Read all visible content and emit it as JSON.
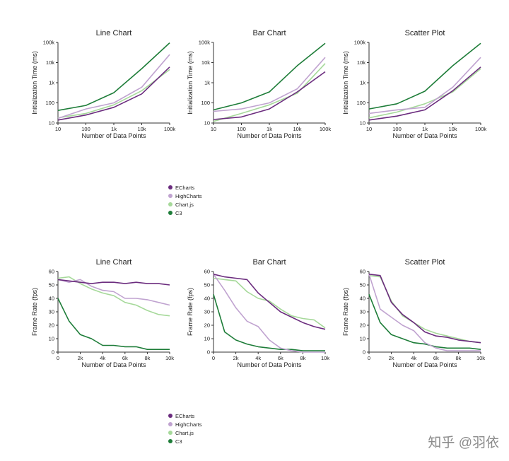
{
  "legend": [
    {
      "name": "ECharts",
      "color": "#6b2c7e"
    },
    {
      "name": "HighCharts",
      "color": "#c0a3d0"
    },
    {
      "name": "Chart.js",
      "color": "#a6d99a"
    },
    {
      "name": "C3",
      "color": "#1e7d39"
    }
  ],
  "watermark": "知乎 @羽依",
  "chart_data": [
    {
      "type": "line",
      "title": "Line Chart",
      "xlabel": "Number of Data Points",
      "ylabel": "Initialization Time (ms)",
      "xscale": "log",
      "yscale": "log",
      "x": [
        10,
        100,
        1000,
        10000,
        100000
      ],
      "xticks": [
        10,
        100,
        1000,
        10000,
        100000
      ],
      "xticklabels": [
        "10",
        "100",
        "1k",
        "10k",
        "100k"
      ],
      "yticks": [
        10,
        100,
        1000,
        10000,
        100000
      ],
      "yticklabels": [
        "10",
        "100",
        "1k",
        "10k",
        "100k"
      ],
      "ylim": [
        10,
        100000
      ],
      "series": [
        {
          "name": "ECharts",
          "values": [
            14,
            25,
            60,
            280,
            6000
          ]
        },
        {
          "name": "HighCharts",
          "values": [
            17,
            50,
            100,
            600,
            25000
          ]
        },
        {
          "name": "Chart.js",
          "values": [
            18,
            30,
            80,
            400,
            4500
          ]
        },
        {
          "name": "C3",
          "values": [
            42,
            75,
            320,
            5000,
            95000
          ]
        }
      ]
    },
    {
      "type": "line",
      "title": "Bar Chart",
      "xlabel": "Number of Data Points",
      "ylabel": "Initialization Time (ms)",
      "xscale": "log",
      "yscale": "log",
      "x": [
        10,
        100,
        1000,
        10000,
        100000
      ],
      "xticks": [
        10,
        100,
        1000,
        10000,
        100000
      ],
      "xticklabels": [
        "10",
        "100",
        "1k",
        "10k",
        "100k"
      ],
      "yticks": [
        10,
        100,
        1000,
        10000,
        100000
      ],
      "yticklabels": [
        "10",
        "100",
        "1k",
        "10k",
        "100k"
      ],
      "ylim": [
        10,
        100000
      ],
      "series": [
        {
          "name": "ECharts",
          "values": [
            15,
            20,
            50,
            350,
            3500
          ]
        },
        {
          "name": "HighCharts",
          "values": [
            38,
            50,
            100,
            500,
            18000
          ]
        },
        {
          "name": "Chart.js",
          "values": [
            12,
            30,
            80,
            300,
            9000
          ]
        },
        {
          "name": "C3",
          "values": [
            45,
            100,
            350,
            7000,
            90000
          ]
        }
      ]
    },
    {
      "type": "line",
      "title": "Scatter Plot",
      "xlabel": "Number of Data Points",
      "ylabel": "Initialization Time (ms)",
      "xscale": "log",
      "yscale": "log",
      "x": [
        10,
        100,
        1000,
        10000,
        100000
      ],
      "xticks": [
        10,
        100,
        1000,
        10000,
        100000
      ],
      "xticklabels": [
        "10",
        "100",
        "1k",
        "10k",
        "100k"
      ],
      "yticks": [
        10,
        100,
        1000,
        10000,
        100000
      ],
      "yticklabels": [
        "10",
        "100",
        "1k",
        "10k",
        "100k"
      ],
      "ylim": [
        10,
        100000
      ],
      "series": [
        {
          "name": "ECharts",
          "values": [
            14,
            22,
            45,
            400,
            6000
          ]
        },
        {
          "name": "HighCharts",
          "values": [
            30,
            45,
            60,
            600,
            18000
          ]
        },
        {
          "name": "Chart.js",
          "values": [
            18,
            35,
            90,
            350,
            5000
          ]
        },
        {
          "name": "C3",
          "values": [
            50,
            90,
            380,
            7000,
            90000
          ]
        }
      ]
    },
    {
      "type": "line",
      "title": "Line Chart",
      "xlabel": "Number of Data Points",
      "ylabel": "Frame Rate (fps)",
      "xscale": "linear",
      "yscale": "linear",
      "x": [
        0,
        1000,
        2000,
        3000,
        4000,
        5000,
        6000,
        7000,
        8000,
        9000,
        10000
      ],
      "xticks": [
        0,
        2000,
        4000,
        6000,
        8000,
        10000
      ],
      "xticklabels": [
        "0",
        "2k",
        "4k",
        "6k",
        "8k",
        "10k"
      ],
      "yticks": [
        0,
        10,
        20,
        30,
        40,
        50,
        60
      ],
      "yticklabels": [
        "0",
        "10",
        "20",
        "30",
        "40",
        "50",
        "60"
      ],
      "ylim": [
        0,
        60
      ],
      "series": [
        {
          "name": "ECharts",
          "values": [
            54,
            53,
            52,
            51,
            52,
            52,
            51,
            52,
            51,
            51,
            50
          ]
        },
        {
          "name": "HighCharts",
          "values": [
            54,
            52,
            54,
            49,
            46,
            45,
            40,
            40,
            39,
            37,
            35
          ]
        },
        {
          "name": "Chart.js",
          "values": [
            55,
            56,
            51,
            47,
            44,
            42,
            37,
            35,
            31,
            28,
            27
          ]
        },
        {
          "name": "C3",
          "values": [
            40,
            23,
            13,
            10,
            5,
            5,
            4,
            4,
            2,
            2,
            2
          ]
        }
      ]
    },
    {
      "type": "line",
      "title": "Bar Chart",
      "xlabel": "Number of Data Points",
      "ylabel": "Frame Rate (fps)",
      "xscale": "linear",
      "yscale": "linear",
      "x": [
        0,
        1000,
        2000,
        3000,
        4000,
        5000,
        6000,
        7000,
        8000,
        9000,
        10000
      ],
      "xticks": [
        0,
        2000,
        4000,
        6000,
        8000,
        10000
      ],
      "xticklabels": [
        "0",
        "2k",
        "4k",
        "6k",
        "8k",
        "10k"
      ],
      "yticks": [
        0,
        10,
        20,
        30,
        40,
        50,
        60
      ],
      "yticklabels": [
        "0",
        "10",
        "20",
        "30",
        "40",
        "50",
        "60"
      ],
      "ylim": [
        0,
        60
      ],
      "series": [
        {
          "name": "ECharts",
          "values": [
            58,
            56,
            55,
            54,
            44,
            37,
            30,
            26,
            22,
            19,
            17
          ]
        },
        {
          "name": "HighCharts",
          "values": [
            58,
            46,
            33,
            23,
            19,
            9,
            3,
            1,
            0,
            0,
            0
          ]
        },
        {
          "name": "Chart.js",
          "values": [
            55,
            54,
            53,
            45,
            40,
            38,
            32,
            27,
            25,
            24,
            18
          ]
        },
        {
          "name": "C3",
          "values": [
            43,
            15,
            9,
            6,
            4,
            3,
            2,
            2,
            1,
            1,
            1
          ]
        }
      ]
    },
    {
      "type": "line",
      "title": "Scatter Plot",
      "xlabel": "Number of Data Points",
      "ylabel": "Frame Rate (fps)",
      "xscale": "linear",
      "yscale": "linear",
      "x": [
        0,
        1000,
        2000,
        3000,
        4000,
        5000,
        6000,
        7000,
        8000,
        9000,
        10000
      ],
      "xticks": [
        0,
        2000,
        4000,
        6000,
        8000,
        10000
      ],
      "xticklabels": [
        "0",
        "2k",
        "4k",
        "6k",
        "8k",
        "10k"
      ],
      "yticks": [
        0,
        10,
        20,
        30,
        40,
        50,
        60
      ],
      "yticklabels": [
        "0",
        "10",
        "20",
        "30",
        "40",
        "50",
        "60"
      ],
      "ylim": [
        0,
        60
      ],
      "series": [
        {
          "name": "ECharts",
          "values": [
            58,
            57,
            37,
            28,
            22,
            15,
            12,
            11,
            9,
            8,
            7
          ]
        },
        {
          "name": "HighCharts",
          "values": [
            58,
            32,
            26,
            20,
            16,
            7,
            3,
            1,
            1,
            1,
            1
          ]
        },
        {
          "name": "Chart.js",
          "values": [
            57,
            56,
            38,
            27,
            22,
            17,
            14,
            12,
            10,
            8,
            7
          ]
        },
        {
          "name": "C3",
          "values": [
            43,
            22,
            13,
            10,
            7,
            6,
            4,
            3,
            3,
            3,
            2
          ]
        }
      ]
    }
  ]
}
